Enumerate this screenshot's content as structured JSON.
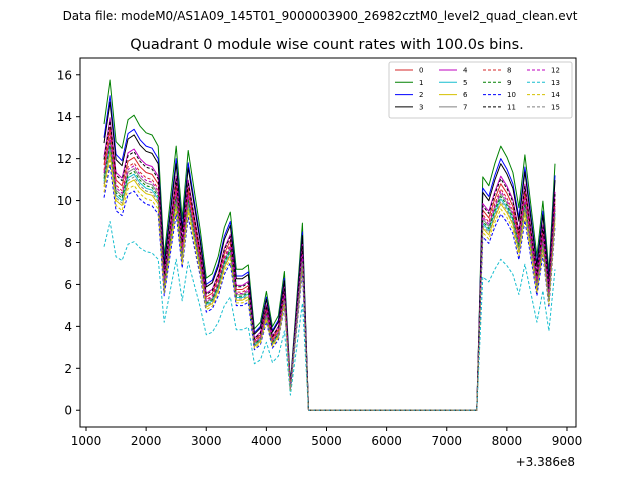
{
  "suptitle": "Data file: modeM0/AS1A09_145T01_9000003900_26982cztM0_level2_quad_clean.evt",
  "chart_data": {
    "type": "line",
    "title": "Quadrant 0 module wise count rates with 100.0s bins.",
    "xlabel": "",
    "ylabel": "",
    "x_offset_label": "+3.386e8",
    "xlim": [
      900,
      9150
    ],
    "ylim": [
      -0.8,
      16.8
    ],
    "xticks": [
      1000,
      2000,
      3000,
      4000,
      5000,
      6000,
      7000,
      8000,
      9000
    ],
    "yticks": [
      0,
      2,
      4,
      6,
      8,
      10,
      12,
      14,
      16
    ],
    "x": [
      1300,
      1400,
      1500,
      1600,
      1700,
      1800,
      1900,
      2000,
      2100,
      2200,
      2300,
      2400,
      2500,
      2600,
      2700,
      2800,
      2900,
      3000,
      3100,
      3200,
      3300,
      3400,
      3500,
      3600,
      3700,
      3800,
      3900,
      4000,
      4100,
      4200,
      4300,
      4400,
      4500,
      4600,
      4700,
      4800,
      7400,
      7500,
      7600,
      7700,
      7800,
      7900,
      8000,
      8100,
      8200,
      8300,
      8400,
      8500,
      8600,
      8700,
      8800
    ],
    "base_profile": [
      13.0,
      15.0,
      12.2,
      11.9,
      13.2,
      13.4,
      12.9,
      12.6,
      12.5,
      12.0,
      7.0,
      9.5,
      12.0,
      8.7,
      11.8,
      10.0,
      8.2,
      6.0,
      6.2,
      7.0,
      8.3,
      9.0,
      6.4,
      6.4,
      6.6,
      3.7,
      4.0,
      5.4,
      3.8,
      4.3,
      6.3,
      1.2,
      4.8,
      8.5,
      0.0,
      0.0,
      0.0,
      0.0,
      10.6,
      10.2,
      11.2,
      12.0,
      11.5,
      10.8,
      9.2,
      11.6,
      9.3,
      7.0,
      9.5,
      6.3,
      11.2
    ],
    "series": [
      {
        "name": "0",
        "color": "#d62728",
        "style": "solid",
        "scale": 0.9
      },
      {
        "name": "1",
        "color": "#008000",
        "style": "solid",
        "scale": 1.05
      },
      {
        "name": "2",
        "color": "#0000ff",
        "style": "solid",
        "scale": 1.0
      },
      {
        "name": "3",
        "color": "#000000",
        "style": "solid",
        "scale": 0.98
      },
      {
        "name": "4",
        "color": "#bf00bf",
        "style": "solid",
        "scale": 0.93
      },
      {
        "name": "5",
        "color": "#17becf",
        "style": "solid",
        "scale": 0.84
      },
      {
        "name": "6",
        "color": "#d4c000",
        "style": "solid",
        "scale": 0.82
      },
      {
        "name": "7",
        "color": "#808080",
        "style": "solid",
        "scale": 0.86
      },
      {
        "name": "8",
        "color": "#d62728",
        "style": "dashed",
        "scale": 0.88
      },
      {
        "name": "9",
        "color": "#008000",
        "style": "dashed",
        "scale": 0.85
      },
      {
        "name": "10",
        "color": "#0000ff",
        "style": "dashed",
        "scale": 0.78
      },
      {
        "name": "11",
        "color": "#000000",
        "style": "dashed",
        "scale": 0.92
      },
      {
        "name": "12",
        "color": "#bf00bf",
        "style": "dashed",
        "scale": 0.87
      },
      {
        "name": "13",
        "color": "#17becf",
        "style": "dashed",
        "scale": 0.6
      },
      {
        "name": "14",
        "color": "#d4c000",
        "style": "dashed",
        "scale": 0.8
      },
      {
        "name": "15",
        "color": "#808080",
        "style": "dashed",
        "scale": 0.83
      }
    ],
    "legend_position": "top-right"
  }
}
